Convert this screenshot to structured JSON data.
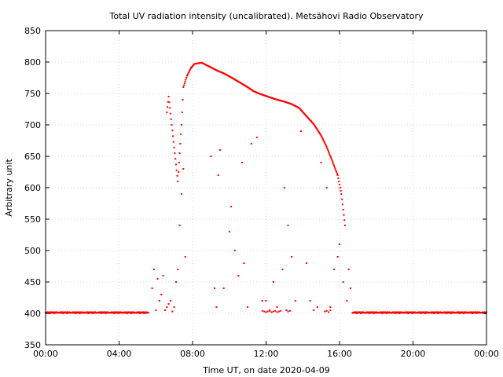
{
  "chart_data": {
    "type": "scatter",
    "title": "Total UV radiation intensity (uncalibrated). Metsähovi Radio Observatory",
    "xlabel": "Time UT, on date 2020-04-09",
    "ylabel": "Arbitrary unit",
    "xlim": [
      0,
      24
    ],
    "ylim": [
      350,
      850
    ],
    "x_ticks": [
      0,
      4,
      8,
      12,
      16,
      20,
      24
    ],
    "x_tick_labels": [
      "00:00",
      "04:00",
      "08:00",
      "12:00",
      "16:00",
      "20:00",
      "00:00"
    ],
    "y_ticks": [
      350,
      400,
      450,
      500,
      550,
      600,
      650,
      700,
      750,
      800,
      850
    ],
    "y_tick_labels": [
      "350",
      "400",
      "450",
      "500",
      "550",
      "600",
      "650",
      "700",
      "750",
      "800",
      "850"
    ],
    "grid": true,
    "marker_color": "#ff0000",
    "baseline_segments": [
      {
        "x": [
          0.0,
          5.6
        ],
        "y": 401
      },
      {
        "x": [
          16.7,
          24.0
        ],
        "y": 401
      }
    ],
    "envelope": {
      "x": [
        6.6,
        6.7,
        7.2,
        7.4,
        7.5,
        7.7,
        7.9,
        8.1,
        8.5,
        8.9,
        9.3,
        9.7,
        10.2,
        10.6,
        11.0,
        11.3,
        11.6,
        12.5,
        13.0,
        13.4,
        13.8,
        14.2,
        14.6,
        15.0,
        15.3,
        15.6,
        15.9,
        16.1,
        16.3
      ],
      "y": [
        720,
        745,
        610,
        700,
        760,
        778,
        790,
        797,
        799,
        793,
        787,
        782,
        774,
        767,
        760,
        754,
        750,
        741,
        737,
        733,
        727,
        714,
        701,
        683,
        665,
        643,
        620,
        590,
        540
      ]
    },
    "scatter_points": {
      "x": [
        5.8,
        5.9,
        6.0,
        6.1,
        6.2,
        6.3,
        6.4,
        6.5,
        6.6,
        6.7,
        6.8,
        6.9,
        7.0,
        7.1,
        7.2,
        7.3,
        7.4,
        7.5,
        7.6,
        9.0,
        9.2,
        9.3,
        9.4,
        9.5,
        9.7,
        10.0,
        10.1,
        10.3,
        10.5,
        10.7,
        10.8,
        11.0,
        11.2,
        11.5,
        11.8,
        12.0,
        12.2,
        12.4,
        12.6,
        12.9,
        13.0,
        13.2,
        13.4,
        13.6,
        13.9,
        14.2,
        14.4,
        14.6,
        14.8,
        15.0,
        15.3,
        15.5,
        15.7,
        15.9,
        16.0,
        16.2,
        16.4,
        16.5,
        16.6
      ],
      "y": [
        440,
        470,
        405,
        455,
        420,
        430,
        460,
        405,
        410,
        415,
        420,
        403,
        410,
        450,
        470,
        540,
        590,
        630,
        490,
        650,
        440,
        410,
        620,
        660,
        440,
        530,
        570,
        500,
        460,
        640,
        480,
        410,
        670,
        680,
        420,
        420,
        405,
        450,
        410,
        470,
        600,
        540,
        490,
        420,
        690,
        480,
        420,
        405,
        410,
        640,
        600,
        410,
        470,
        490,
        510,
        450,
        420,
        470,
        440
      ]
    },
    "cluster_points": {
      "x": [
        11.8,
        11.9,
        12.0,
        12.1,
        12.2,
        12.3,
        12.4,
        12.5,
        12.6,
        12.7,
        12.8,
        13.1,
        13.2,
        13.3,
        15.2,
        15.3,
        15.4,
        15.5
      ],
      "y": [
        404,
        403,
        402,
        403,
        404,
        402,
        403,
        404,
        402,
        403,
        404,
        405,
        403,
        404,
        403,
        404,
        402,
        405
      ]
    }
  }
}
